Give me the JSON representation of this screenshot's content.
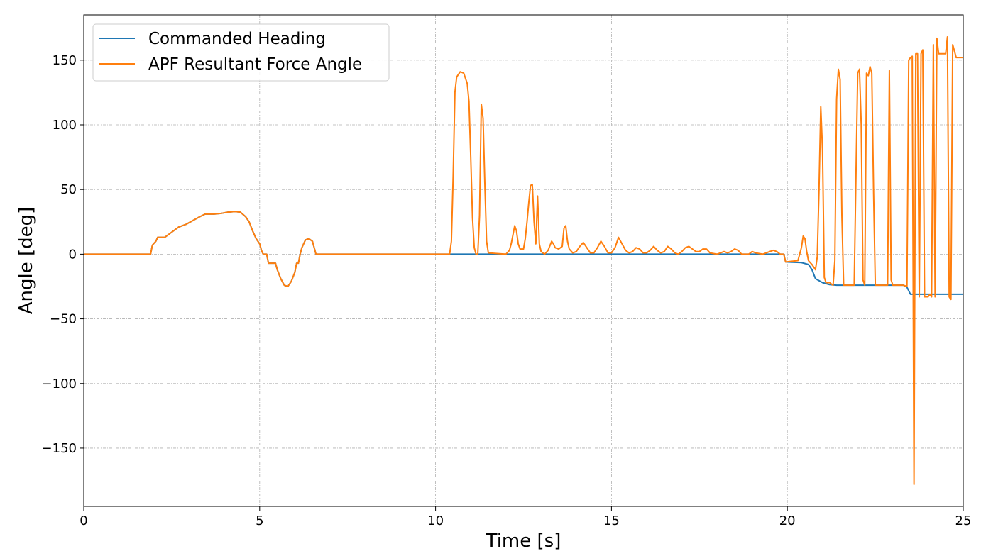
{
  "chart_data": {
    "type": "line",
    "title": "",
    "xlabel": "Time [s]",
    "ylabel": "Angle [deg]",
    "xlim": [
      0,
      25
    ],
    "ylim": [
      -195,
      185
    ],
    "xticks": [
      0,
      5,
      10,
      15,
      20,
      25
    ],
    "xtick_labels": [
      "0",
      "5",
      "10",
      "15",
      "20",
      "25"
    ],
    "yticks": [
      150,
      100,
      50,
      0,
      -50,
      -100,
      -150
    ],
    "ytick_labels": [
      "150",
      "100",
      "50",
      "0",
      "−50",
      "−100",
      "−150"
    ],
    "grid": true,
    "legend_position": "top-left",
    "series": [
      {
        "name": "Commanded Heading",
        "color": "#1f77b4",
        "points": [
          [
            0,
            0
          ],
          [
            1.9,
            0
          ],
          [
            1.95,
            7
          ],
          [
            2.05,
            10
          ],
          [
            2.1,
            13
          ],
          [
            2.3,
            13
          ],
          [
            2.5,
            17
          ],
          [
            2.7,
            21
          ],
          [
            2.9,
            23
          ],
          [
            3.1,
            26
          ],
          [
            3.3,
            29
          ],
          [
            3.45,
            31
          ],
          [
            3.7,
            31
          ],
          [
            3.9,
            31.5
          ],
          [
            4.1,
            32.5
          ],
          [
            4.3,
            33
          ],
          [
            4.45,
            32.5
          ],
          [
            4.6,
            29
          ],
          [
            4.7,
            25
          ],
          [
            4.8,
            18
          ],
          [
            4.9,
            12
          ],
          [
            5.0,
            8
          ],
          [
            5.05,
            3
          ],
          [
            5.1,
            0
          ],
          [
            5.2,
            0
          ],
          [
            5.25,
            -7
          ],
          [
            5.45,
            -7
          ],
          [
            5.5,
            -12
          ],
          [
            5.6,
            -19
          ],
          [
            5.7,
            -24
          ],
          [
            5.8,
            -25
          ],
          [
            5.9,
            -21
          ],
          [
            6.0,
            -14
          ],
          [
            6.05,
            -7
          ],
          [
            6.1,
            -7
          ],
          [
            6.15,
            0
          ],
          [
            6.2,
            5
          ],
          [
            6.3,
            11
          ],
          [
            6.4,
            12
          ],
          [
            6.5,
            10
          ],
          [
            6.55,
            5
          ],
          [
            6.6,
            0
          ],
          [
            10,
            0
          ],
          [
            15,
            0
          ],
          [
            19.9,
            0
          ],
          [
            19.95,
            -6
          ],
          [
            20.4,
            -6.5
          ],
          [
            20.6,
            -8
          ],
          [
            20.7,
            -12
          ],
          [
            20.8,
            -19
          ],
          [
            21.0,
            -22
          ],
          [
            21.2,
            -23.5
          ],
          [
            21.4,
            -24
          ],
          [
            23.3,
            -24
          ],
          [
            23.4,
            -25.5
          ],
          [
            23.5,
            -31
          ],
          [
            25,
            -31
          ]
        ]
      },
      {
        "name": "APF Resultant Force Angle",
        "color": "#ff7f0e",
        "points": [
          [
            0,
            0
          ],
          [
            1.9,
            0
          ],
          [
            1.95,
            7
          ],
          [
            2.05,
            10
          ],
          [
            2.1,
            13
          ],
          [
            2.3,
            13
          ],
          [
            2.5,
            17
          ],
          [
            2.7,
            21
          ],
          [
            2.9,
            23
          ],
          [
            3.1,
            26
          ],
          [
            3.3,
            29
          ],
          [
            3.45,
            31
          ],
          [
            3.7,
            31
          ],
          [
            3.9,
            31.5
          ],
          [
            4.1,
            32.5
          ],
          [
            4.3,
            33
          ],
          [
            4.45,
            32.5
          ],
          [
            4.6,
            29
          ],
          [
            4.7,
            25
          ],
          [
            4.8,
            18
          ],
          [
            4.9,
            12
          ],
          [
            5.0,
            8
          ],
          [
            5.05,
            3
          ],
          [
            5.1,
            0
          ],
          [
            5.2,
            0
          ],
          [
            5.25,
            -7
          ],
          [
            5.45,
            -7
          ],
          [
            5.5,
            -12
          ],
          [
            5.6,
            -19
          ],
          [
            5.7,
            -24
          ],
          [
            5.8,
            -25
          ],
          [
            5.9,
            -21
          ],
          [
            6.0,
            -14
          ],
          [
            6.05,
            -7
          ],
          [
            6.1,
            -7
          ],
          [
            6.15,
            0
          ],
          [
            6.2,
            5
          ],
          [
            6.3,
            11
          ],
          [
            6.4,
            12
          ],
          [
            6.5,
            10
          ],
          [
            6.55,
            5
          ],
          [
            6.6,
            0
          ],
          [
            10.4,
            0
          ],
          [
            10.45,
            10
          ],
          [
            10.5,
            60
          ],
          [
            10.55,
            125
          ],
          [
            10.6,
            137
          ],
          [
            10.7,
            141
          ],
          [
            10.8,
            140
          ],
          [
            10.9,
            132
          ],
          [
            10.95,
            118
          ],
          [
            11.0,
            75
          ],
          [
            11.05,
            28
          ],
          [
            11.1,
            5
          ],
          [
            11.15,
            0
          ],
          [
            11.2,
            0
          ],
          [
            11.25,
            30
          ],
          [
            11.3,
            116
          ],
          [
            11.35,
            105
          ],
          [
            11.4,
            55
          ],
          [
            11.45,
            10
          ],
          [
            11.5,
            1
          ],
          [
            12.0,
            0
          ],
          [
            12.1,
            3
          ],
          [
            12.15,
            8
          ],
          [
            12.2,
            15
          ],
          [
            12.25,
            22
          ],
          [
            12.3,
            18
          ],
          [
            12.35,
            8
          ],
          [
            12.4,
            4
          ],
          [
            12.5,
            4
          ],
          [
            12.55,
            12
          ],
          [
            12.6,
            25
          ],
          [
            12.65,
            40
          ],
          [
            12.7,
            53
          ],
          [
            12.75,
            54
          ],
          [
            12.8,
            25
          ],
          [
            12.85,
            8
          ],
          [
            12.9,
            45
          ],
          [
            12.95,
            8
          ],
          [
            13.0,
            2
          ],
          [
            13.1,
            0
          ],
          [
            13.2,
            3
          ],
          [
            13.3,
            10
          ],
          [
            13.35,
            8
          ],
          [
            13.4,
            5
          ],
          [
            13.5,
            4
          ],
          [
            13.6,
            6
          ],
          [
            13.65,
            20
          ],
          [
            13.7,
            22
          ],
          [
            13.75,
            10
          ],
          [
            13.8,
            4
          ],
          [
            13.9,
            1
          ],
          [
            14.0,
            2
          ],
          [
            14.1,
            6
          ],
          [
            14.2,
            9
          ],
          [
            14.3,
            5
          ],
          [
            14.4,
            1
          ],
          [
            14.5,
            1
          ],
          [
            14.6,
            5
          ],
          [
            14.7,
            10
          ],
          [
            14.8,
            6
          ],
          [
            14.9,
            1
          ],
          [
            15.0,
            1
          ],
          [
            15.1,
            5
          ],
          [
            15.2,
            13
          ],
          [
            15.3,
            8
          ],
          [
            15.4,
            3
          ],
          [
            15.5,
            1
          ],
          [
            15.6,
            2
          ],
          [
            15.7,
            5
          ],
          [
            15.8,
            4
          ],
          [
            15.9,
            1
          ],
          [
            16.0,
            1
          ],
          [
            16.1,
            3
          ],
          [
            16.2,
            6
          ],
          [
            16.3,
            3
          ],
          [
            16.4,
            1
          ],
          [
            16.5,
            2
          ],
          [
            16.6,
            6
          ],
          [
            16.7,
            4
          ],
          [
            16.8,
            1
          ],
          [
            16.9,
            0
          ],
          [
            17.0,
            2
          ],
          [
            17.1,
            5
          ],
          [
            17.2,
            6
          ],
          [
            17.3,
            4
          ],
          [
            17.4,
            2
          ],
          [
            17.5,
            2
          ],
          [
            17.6,
            4
          ],
          [
            17.7,
            4
          ],
          [
            17.8,
            1
          ],
          [
            18.0,
            0
          ],
          [
            18.1,
            1
          ],
          [
            18.2,
            2
          ],
          [
            18.3,
            1
          ],
          [
            18.4,
            2
          ],
          [
            18.5,
            4
          ],
          [
            18.6,
            3
          ],
          [
            18.7,
            0
          ],
          [
            18.9,
            0
          ],
          [
            19.0,
            2
          ],
          [
            19.1,
            1
          ],
          [
            19.3,
            0
          ],
          [
            19.5,
            2
          ],
          [
            19.6,
            3
          ],
          [
            19.7,
            2
          ],
          [
            19.8,
            0
          ],
          [
            19.9,
            0
          ],
          [
            19.95,
            -6
          ],
          [
            20.3,
            -5
          ],
          [
            20.4,
            5
          ],
          [
            20.45,
            14
          ],
          [
            20.5,
            12
          ],
          [
            20.55,
            2
          ],
          [
            20.6,
            -5
          ],
          [
            20.7,
            -8
          ],
          [
            20.8,
            -12
          ],
          [
            20.85,
            -2
          ],
          [
            20.9,
            50
          ],
          [
            20.95,
            114
          ],
          [
            21.0,
            80
          ],
          [
            21.05,
            -18
          ],
          [
            21.1,
            -22
          ],
          [
            21.2,
            -22
          ],
          [
            21.3,
            -24
          ],
          [
            21.35,
            -5
          ],
          [
            21.4,
            120
          ],
          [
            21.45,
            143
          ],
          [
            21.5,
            135
          ],
          [
            21.55,
            30
          ],
          [
            21.6,
            -24
          ],
          [
            21.9,
            -24
          ],
          [
            21.95,
            60
          ],
          [
            22.0,
            140
          ],
          [
            22.05,
            143
          ],
          [
            22.1,
            100
          ],
          [
            22.15,
            -20
          ],
          [
            22.2,
            -24
          ],
          [
            22.25,
            140
          ],
          [
            22.3,
            138
          ],
          [
            22.35,
            145
          ],
          [
            22.4,
            140
          ],
          [
            22.45,
            50
          ],
          [
            22.5,
            -24
          ],
          [
            22.85,
            -24
          ],
          [
            22.9,
            142
          ],
          [
            22.95,
            -20
          ],
          [
            23.0,
            -24
          ],
          [
            23.3,
            -24
          ],
          [
            23.4,
            -25
          ],
          [
            23.45,
            150
          ],
          [
            23.5,
            152
          ],
          [
            23.55,
            153
          ],
          [
            23.6,
            -178
          ],
          [
            23.62,
            -35
          ],
          [
            23.65,
            155
          ],
          [
            23.7,
            155
          ],
          [
            23.75,
            -33
          ],
          [
            23.8,
            155
          ],
          [
            23.85,
            158
          ],
          [
            23.9,
            -33
          ],
          [
            24.0,
            -33
          ],
          [
            24.05,
            -31
          ],
          [
            24.1,
            -33
          ],
          [
            24.15,
            162
          ],
          [
            24.2,
            -33
          ],
          [
            24.25,
            167
          ],
          [
            24.3,
            155
          ],
          [
            24.5,
            155
          ],
          [
            24.55,
            168
          ],
          [
            24.6,
            -33
          ],
          [
            24.65,
            -35
          ],
          [
            24.7,
            162
          ],
          [
            24.8,
            152
          ],
          [
            25.0,
            152
          ],
          [
            25.0,
            160
          ],
          [
            25.0,
            -33
          ]
        ]
      }
    ]
  }
}
